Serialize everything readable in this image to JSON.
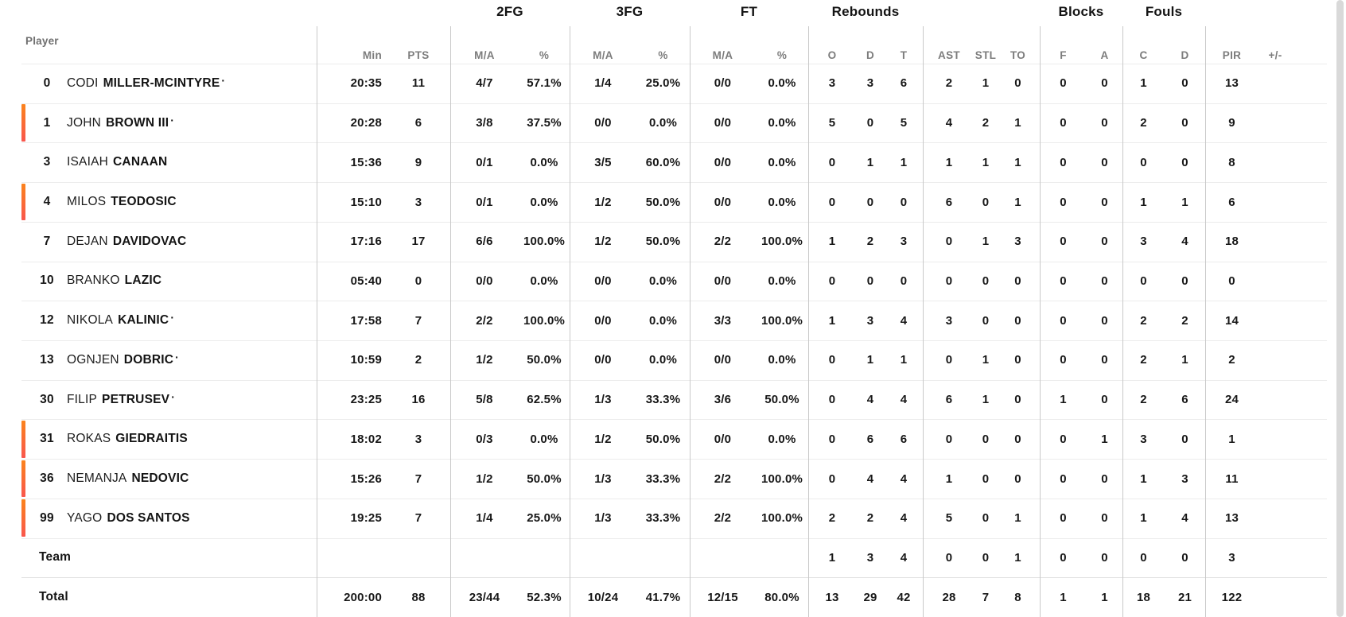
{
  "meta": {
    "starter_marker": "·"
  },
  "colors": {
    "on_court_bar_top": "#fb831c",
    "on_court_bar_bottom": "#f9564d",
    "header_text": "#141414",
    "muted_text": "#7c7c7c",
    "column_separator": "#c9c9c9",
    "row_separator": "#ececec"
  },
  "header": {
    "player_col_label": "Player",
    "groups": [
      {
        "id": "fg2",
        "label": "2FG"
      },
      {
        "id": "fg3",
        "label": "3FG"
      },
      {
        "id": "ft",
        "label": "FT"
      },
      {
        "id": "rebounds",
        "label": "Rebounds"
      },
      {
        "id": "blocks",
        "label": "Blocks"
      },
      {
        "id": "fouls",
        "label": "Fouls"
      }
    ],
    "sub": {
      "min": "Min",
      "pts": "PTS",
      "fg2_ma": "M/A",
      "fg2_pct": "%",
      "fg3_ma": "M/A",
      "fg3_pct": "%",
      "ft_ma": "M/A",
      "ft_pct": "%",
      "reb_o": "O",
      "reb_d": "D",
      "reb_t": "T",
      "ast": "AST",
      "stl": "STL",
      "to": "TO",
      "blk_f": "F",
      "blk_a": "A",
      "foul_c": "C",
      "foul_d": "D",
      "pir": "PIR",
      "plus_minus": "+/-"
    }
  },
  "players": [
    {
      "number": "0",
      "first": "CODI",
      "last": "MILLER-MCINTYRE",
      "starter": true,
      "on_court": false,
      "min": "20:35",
      "pts": "11",
      "fg2_ma": "4/7",
      "fg2_pct": "57.1%",
      "fg3_ma": "1/4",
      "fg3_pct": "25.0%",
      "ft_ma": "0/0",
      "ft_pct": "0.0%",
      "reb_o": "3",
      "reb_d": "3",
      "reb_t": "6",
      "ast": "2",
      "stl": "1",
      "to": "0",
      "blk_f": "0",
      "blk_a": "0",
      "foul_c": "1",
      "foul_d": "0",
      "pir": "13",
      "plus_minus": ""
    },
    {
      "number": "1",
      "first": "JOHN",
      "last": "BROWN III",
      "starter": true,
      "on_court": true,
      "min": "20:28",
      "pts": "6",
      "fg2_ma": "3/8",
      "fg2_pct": "37.5%",
      "fg3_ma": "0/0",
      "fg3_pct": "0.0%",
      "ft_ma": "0/0",
      "ft_pct": "0.0%",
      "reb_o": "5",
      "reb_d": "0",
      "reb_t": "5",
      "ast": "4",
      "stl": "2",
      "to": "1",
      "blk_f": "0",
      "blk_a": "0",
      "foul_c": "2",
      "foul_d": "0",
      "pir": "9",
      "plus_minus": ""
    },
    {
      "number": "3",
      "first": "ISAIAH",
      "last": "CANAAN",
      "starter": false,
      "on_court": false,
      "min": "15:36",
      "pts": "9",
      "fg2_ma": "0/1",
      "fg2_pct": "0.0%",
      "fg3_ma": "3/5",
      "fg3_pct": "60.0%",
      "ft_ma": "0/0",
      "ft_pct": "0.0%",
      "reb_o": "0",
      "reb_d": "1",
      "reb_t": "1",
      "ast": "1",
      "stl": "1",
      "to": "1",
      "blk_f": "0",
      "blk_a": "0",
      "foul_c": "0",
      "foul_d": "0",
      "pir": "8",
      "plus_minus": ""
    },
    {
      "number": "4",
      "first": "MILOS",
      "last": "TEODOSIC",
      "starter": false,
      "on_court": true,
      "min": "15:10",
      "pts": "3",
      "fg2_ma": "0/1",
      "fg2_pct": "0.0%",
      "fg3_ma": "1/2",
      "fg3_pct": "50.0%",
      "ft_ma": "0/0",
      "ft_pct": "0.0%",
      "reb_o": "0",
      "reb_d": "0",
      "reb_t": "0",
      "ast": "6",
      "stl": "0",
      "to": "1",
      "blk_f": "0",
      "blk_a": "0",
      "foul_c": "1",
      "foul_d": "1",
      "pir": "6",
      "plus_minus": ""
    },
    {
      "number": "7",
      "first": "DEJAN",
      "last": "DAVIDOVAC",
      "starter": false,
      "on_court": false,
      "min": "17:16",
      "pts": "17",
      "fg2_ma": "6/6",
      "fg2_pct": "100.0%",
      "fg3_ma": "1/2",
      "fg3_pct": "50.0%",
      "ft_ma": "2/2",
      "ft_pct": "100.0%",
      "reb_o": "1",
      "reb_d": "2",
      "reb_t": "3",
      "ast": "0",
      "stl": "1",
      "to": "3",
      "blk_f": "0",
      "blk_a": "0",
      "foul_c": "3",
      "foul_d": "4",
      "pir": "18",
      "plus_minus": ""
    },
    {
      "number": "10",
      "first": "BRANKO",
      "last": "LAZIC",
      "starter": false,
      "on_court": false,
      "min": "05:40",
      "pts": "0",
      "fg2_ma": "0/0",
      "fg2_pct": "0.0%",
      "fg3_ma": "0/0",
      "fg3_pct": "0.0%",
      "ft_ma": "0/0",
      "ft_pct": "0.0%",
      "reb_o": "0",
      "reb_d": "0",
      "reb_t": "0",
      "ast": "0",
      "stl": "0",
      "to": "0",
      "blk_f": "0",
      "blk_a": "0",
      "foul_c": "0",
      "foul_d": "0",
      "pir": "0",
      "plus_minus": ""
    },
    {
      "number": "12",
      "first": "NIKOLA",
      "last": "KALINIC",
      "starter": true,
      "on_court": false,
      "min": "17:58",
      "pts": "7",
      "fg2_ma": "2/2",
      "fg2_pct": "100.0%",
      "fg3_ma": "0/0",
      "fg3_pct": "0.0%",
      "ft_ma": "3/3",
      "ft_pct": "100.0%",
      "reb_o": "1",
      "reb_d": "3",
      "reb_t": "4",
      "ast": "3",
      "stl": "0",
      "to": "0",
      "blk_f": "0",
      "blk_a": "0",
      "foul_c": "2",
      "foul_d": "2",
      "pir": "14",
      "plus_minus": ""
    },
    {
      "number": "13",
      "first": "OGNJEN",
      "last": "DOBRIC",
      "starter": true,
      "on_court": false,
      "min": "10:59",
      "pts": "2",
      "fg2_ma": "1/2",
      "fg2_pct": "50.0%",
      "fg3_ma": "0/0",
      "fg3_pct": "0.0%",
      "ft_ma": "0/0",
      "ft_pct": "0.0%",
      "reb_o": "0",
      "reb_d": "1",
      "reb_t": "1",
      "ast": "0",
      "stl": "1",
      "to": "0",
      "blk_f": "0",
      "blk_a": "0",
      "foul_c": "2",
      "foul_d": "1",
      "pir": "2",
      "plus_minus": ""
    },
    {
      "number": "30",
      "first": "FILIP",
      "last": "PETRUSEV",
      "starter": true,
      "on_court": false,
      "min": "23:25",
      "pts": "16",
      "fg2_ma": "5/8",
      "fg2_pct": "62.5%",
      "fg3_ma": "1/3",
      "fg3_pct": "33.3%",
      "ft_ma": "3/6",
      "ft_pct": "50.0%",
      "reb_o": "0",
      "reb_d": "4",
      "reb_t": "4",
      "ast": "6",
      "stl": "1",
      "to": "0",
      "blk_f": "1",
      "blk_a": "0",
      "foul_c": "2",
      "foul_d": "6",
      "pir": "24",
      "plus_minus": ""
    },
    {
      "number": "31",
      "first": "ROKAS",
      "last": "GIEDRAITIS",
      "starter": false,
      "on_court": true,
      "min": "18:02",
      "pts": "3",
      "fg2_ma": "0/3",
      "fg2_pct": "0.0%",
      "fg3_ma": "1/2",
      "fg3_pct": "50.0%",
      "ft_ma": "0/0",
      "ft_pct": "0.0%",
      "reb_o": "0",
      "reb_d": "6",
      "reb_t": "6",
      "ast": "0",
      "stl": "0",
      "to": "0",
      "blk_f": "0",
      "blk_a": "1",
      "foul_c": "3",
      "foul_d": "0",
      "pir": "1",
      "plus_minus": ""
    },
    {
      "number": "36",
      "first": "NEMANJA",
      "last": "NEDOVIC",
      "starter": false,
      "on_court": true,
      "min": "15:26",
      "pts": "7",
      "fg2_ma": "1/2",
      "fg2_pct": "50.0%",
      "fg3_ma": "1/3",
      "fg3_pct": "33.3%",
      "ft_ma": "2/2",
      "ft_pct": "100.0%",
      "reb_o": "0",
      "reb_d": "4",
      "reb_t": "4",
      "ast": "1",
      "stl": "0",
      "to": "0",
      "blk_f": "0",
      "blk_a": "0",
      "foul_c": "1",
      "foul_d": "3",
      "pir": "11",
      "plus_minus": ""
    },
    {
      "number": "99",
      "first": "YAGO",
      "last": "DOS SANTOS",
      "starter": false,
      "on_court": true,
      "min": "19:25",
      "pts": "7",
      "fg2_ma": "1/4",
      "fg2_pct": "25.0%",
      "fg3_ma": "1/3",
      "fg3_pct": "33.3%",
      "ft_ma": "2/2",
      "ft_pct": "100.0%",
      "reb_o": "2",
      "reb_d": "2",
      "reb_t": "4",
      "ast": "5",
      "stl": "0",
      "to": "1",
      "blk_f": "0",
      "blk_a": "0",
      "foul_c": "1",
      "foul_d": "4",
      "pir": "13",
      "plus_minus": ""
    }
  ],
  "team_row": {
    "label": "Team",
    "min": "",
    "pts": "",
    "fg2_ma": "",
    "fg2_pct": "",
    "fg3_ma": "",
    "fg3_pct": "",
    "ft_ma": "",
    "ft_pct": "",
    "reb_o": "1",
    "reb_d": "3",
    "reb_t": "4",
    "ast": "0",
    "stl": "0",
    "to": "1",
    "blk_f": "0",
    "blk_a": "0",
    "foul_c": "0",
    "foul_d": "0",
    "pir": "3",
    "plus_minus": ""
  },
  "total_row": {
    "label": "Total",
    "min": "200:00",
    "pts": "88",
    "fg2_ma": "23/44",
    "fg2_pct": "52.3%",
    "fg3_ma": "10/24",
    "fg3_pct": "41.7%",
    "ft_ma": "12/15",
    "ft_pct": "80.0%",
    "reb_o": "13",
    "reb_d": "29",
    "reb_t": "42",
    "ast": "28",
    "stl": "7",
    "to": "8",
    "blk_f": "1",
    "blk_a": "1",
    "foul_c": "18",
    "foul_d": "21",
    "pir": "122",
    "plus_minus": ""
  }
}
